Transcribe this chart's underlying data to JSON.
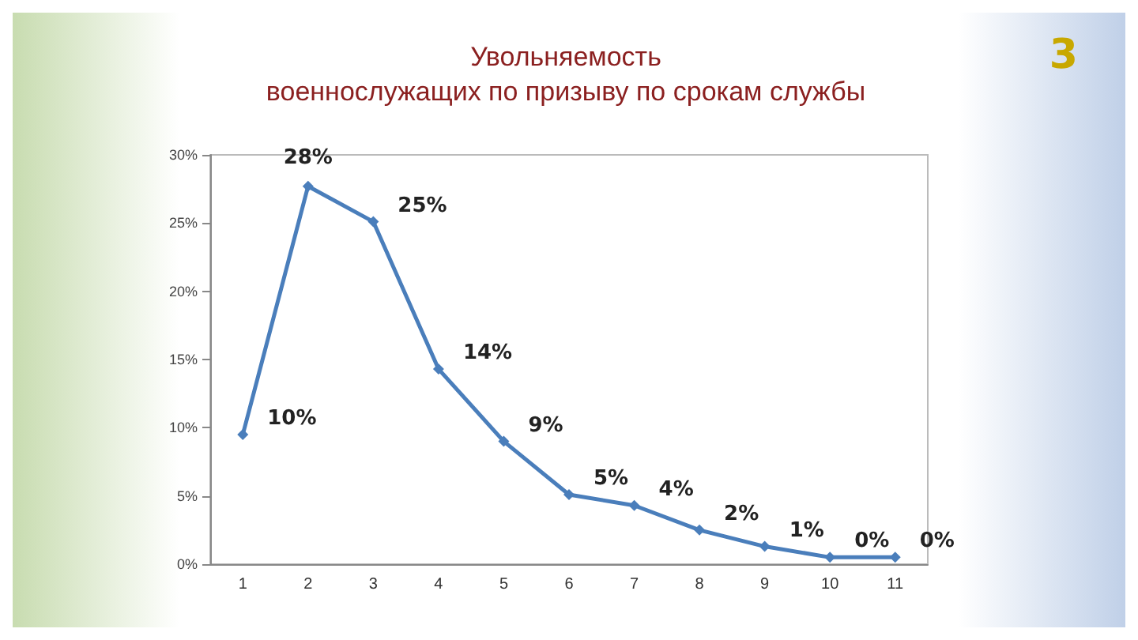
{
  "chart_data": {
    "type": "line",
    "title": "Увольняемость\nвоеннослужащих по призыву по срокам службы",
    "categories": [
      "1",
      "2",
      "3",
      "4",
      "5",
      "6",
      "7",
      "8",
      "9",
      "10",
      "11"
    ],
    "series": [
      {
        "color": "#4a7ebb",
        "values": [
          9.5,
          27.7,
          25.1,
          14.3,
          9.0,
          5.1,
          4.3,
          2.5,
          1.3,
          0.5,
          0.5
        ],
        "value_labels": [
          "10%",
          "28%",
          "25%",
          "14%",
          "9%",
          "5%",
          "4%",
          "2%",
          "1%",
          "0%",
          "0%"
        ]
      }
    ],
    "ylim": [
      0,
      30
    ],
    "yticks": [
      {
        "value": 0,
        "label": "0%"
      },
      {
        "value": 5,
        "label": "5%"
      },
      {
        "value": 10,
        "label": "10%"
      },
      {
        "value": 15,
        "label": "15%"
      },
      {
        "value": 20,
        "label": "20%"
      },
      {
        "value": 25,
        "label": "25%"
      },
      {
        "value": 30,
        "label": "30%"
      }
    ],
    "grid": false,
    "marker": "diamond",
    "line_style": "solid",
    "annotations": [
      "3"
    ]
  }
}
